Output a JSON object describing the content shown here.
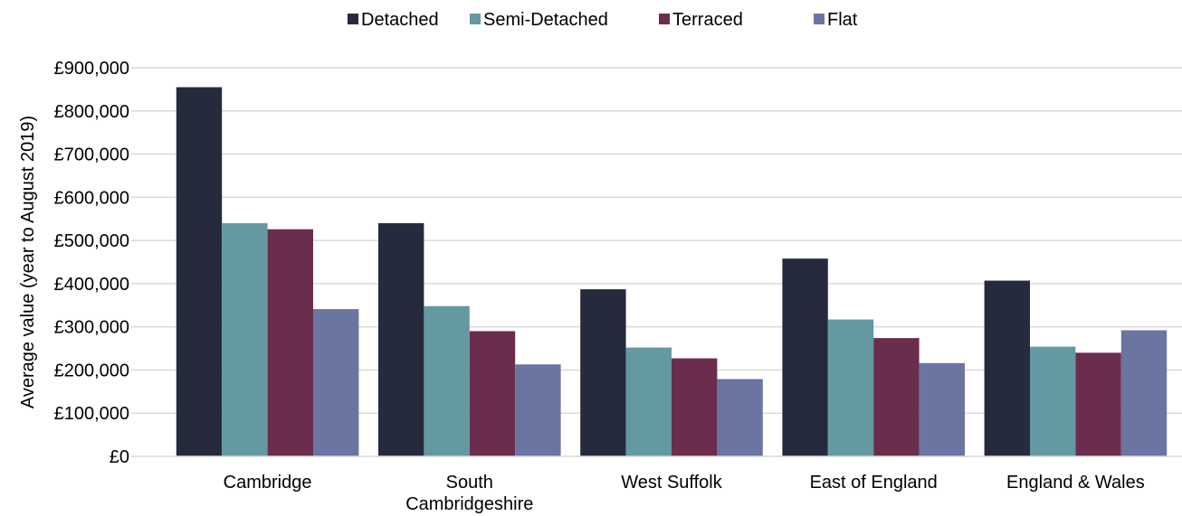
{
  "chart_data": {
    "type": "bar",
    "categories": [
      [
        "Cambridge"
      ],
      [
        "South",
        "Cambridgeshire"
      ],
      [
        "West Suffolk"
      ],
      [
        "East of England"
      ],
      [
        "England & Wales"
      ]
    ],
    "series": [
      {
        "name": "Detached",
        "color": "#262a3d",
        "values": [
          855000,
          540000,
          387000,
          458000,
          407000
        ]
      },
      {
        "name": "Semi-Detached",
        "color": "#6499a1",
        "values": [
          540000,
          348000,
          252000,
          317000,
          254000
        ]
      },
      {
        "name": "Terraced",
        "color": "#6b2d4d",
        "values": [
          526000,
          290000,
          227000,
          274000,
          240000
        ]
      },
      {
        "name": "Flat",
        "color": "#6a75a1",
        "values": [
          341000,
          213000,
          179000,
          216000,
          292000
        ]
      }
    ],
    "ylabel": "Average value (year to August 2019)",
    "ylim": [
      0,
      900000
    ],
    "yticks": [
      "£0",
      "£100,000",
      "£200,000",
      "£300,000",
      "£400,000",
      "£500,000",
      "£600,000",
      "£700,000",
      "£800,000",
      "£900,000"
    ],
    "grid": true,
    "legend_position": "top-center"
  }
}
